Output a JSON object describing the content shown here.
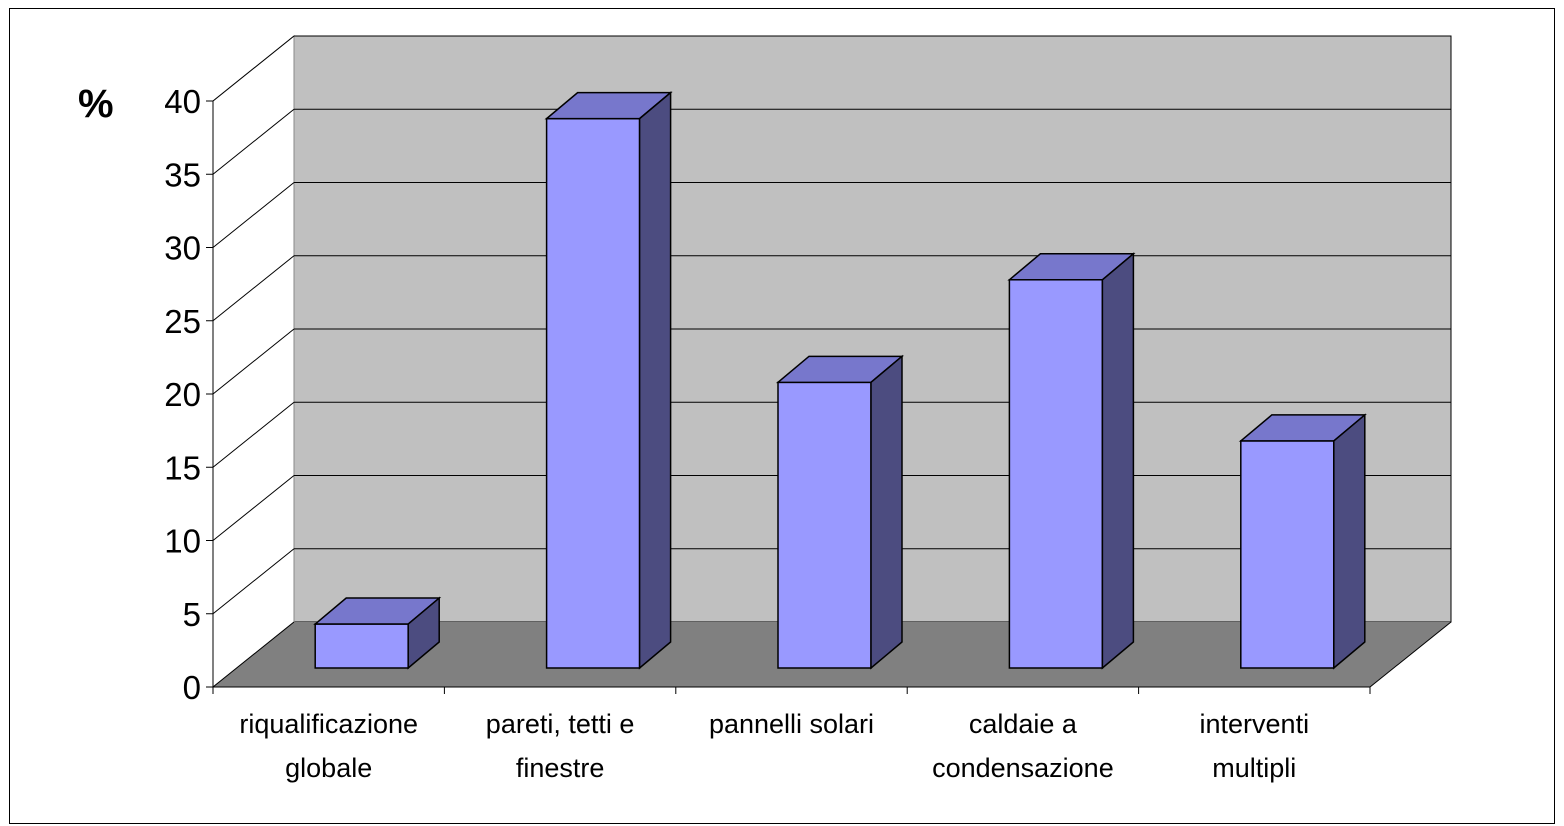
{
  "chart_data": {
    "type": "bar",
    "style": "3d-column",
    "ylabel": "%",
    "categories": [
      [
        "riqualificazione",
        "globale"
      ],
      [
        "pareti, tetti e",
        "finestre"
      ],
      [
        "pannelli solari"
      ],
      [
        "caldaie a",
        "condensazione"
      ],
      [
        "interventi",
        "multipli"
      ]
    ],
    "values": [
      3,
      37.5,
      19.5,
      26.5,
      15.5
    ],
    "ylim": [
      0,
      40
    ],
    "yticks": [
      "0",
      "5",
      "10",
      "15",
      "20",
      "25",
      "30",
      "35",
      "40"
    ],
    "grid": true,
    "legend": "none",
    "colors": {
      "bar_front": "#9999ff",
      "bar_top": "#7777cc",
      "bar_side": "#4c4c80",
      "back_wall": "#c0c0c0",
      "floor": "#808080"
    }
  }
}
